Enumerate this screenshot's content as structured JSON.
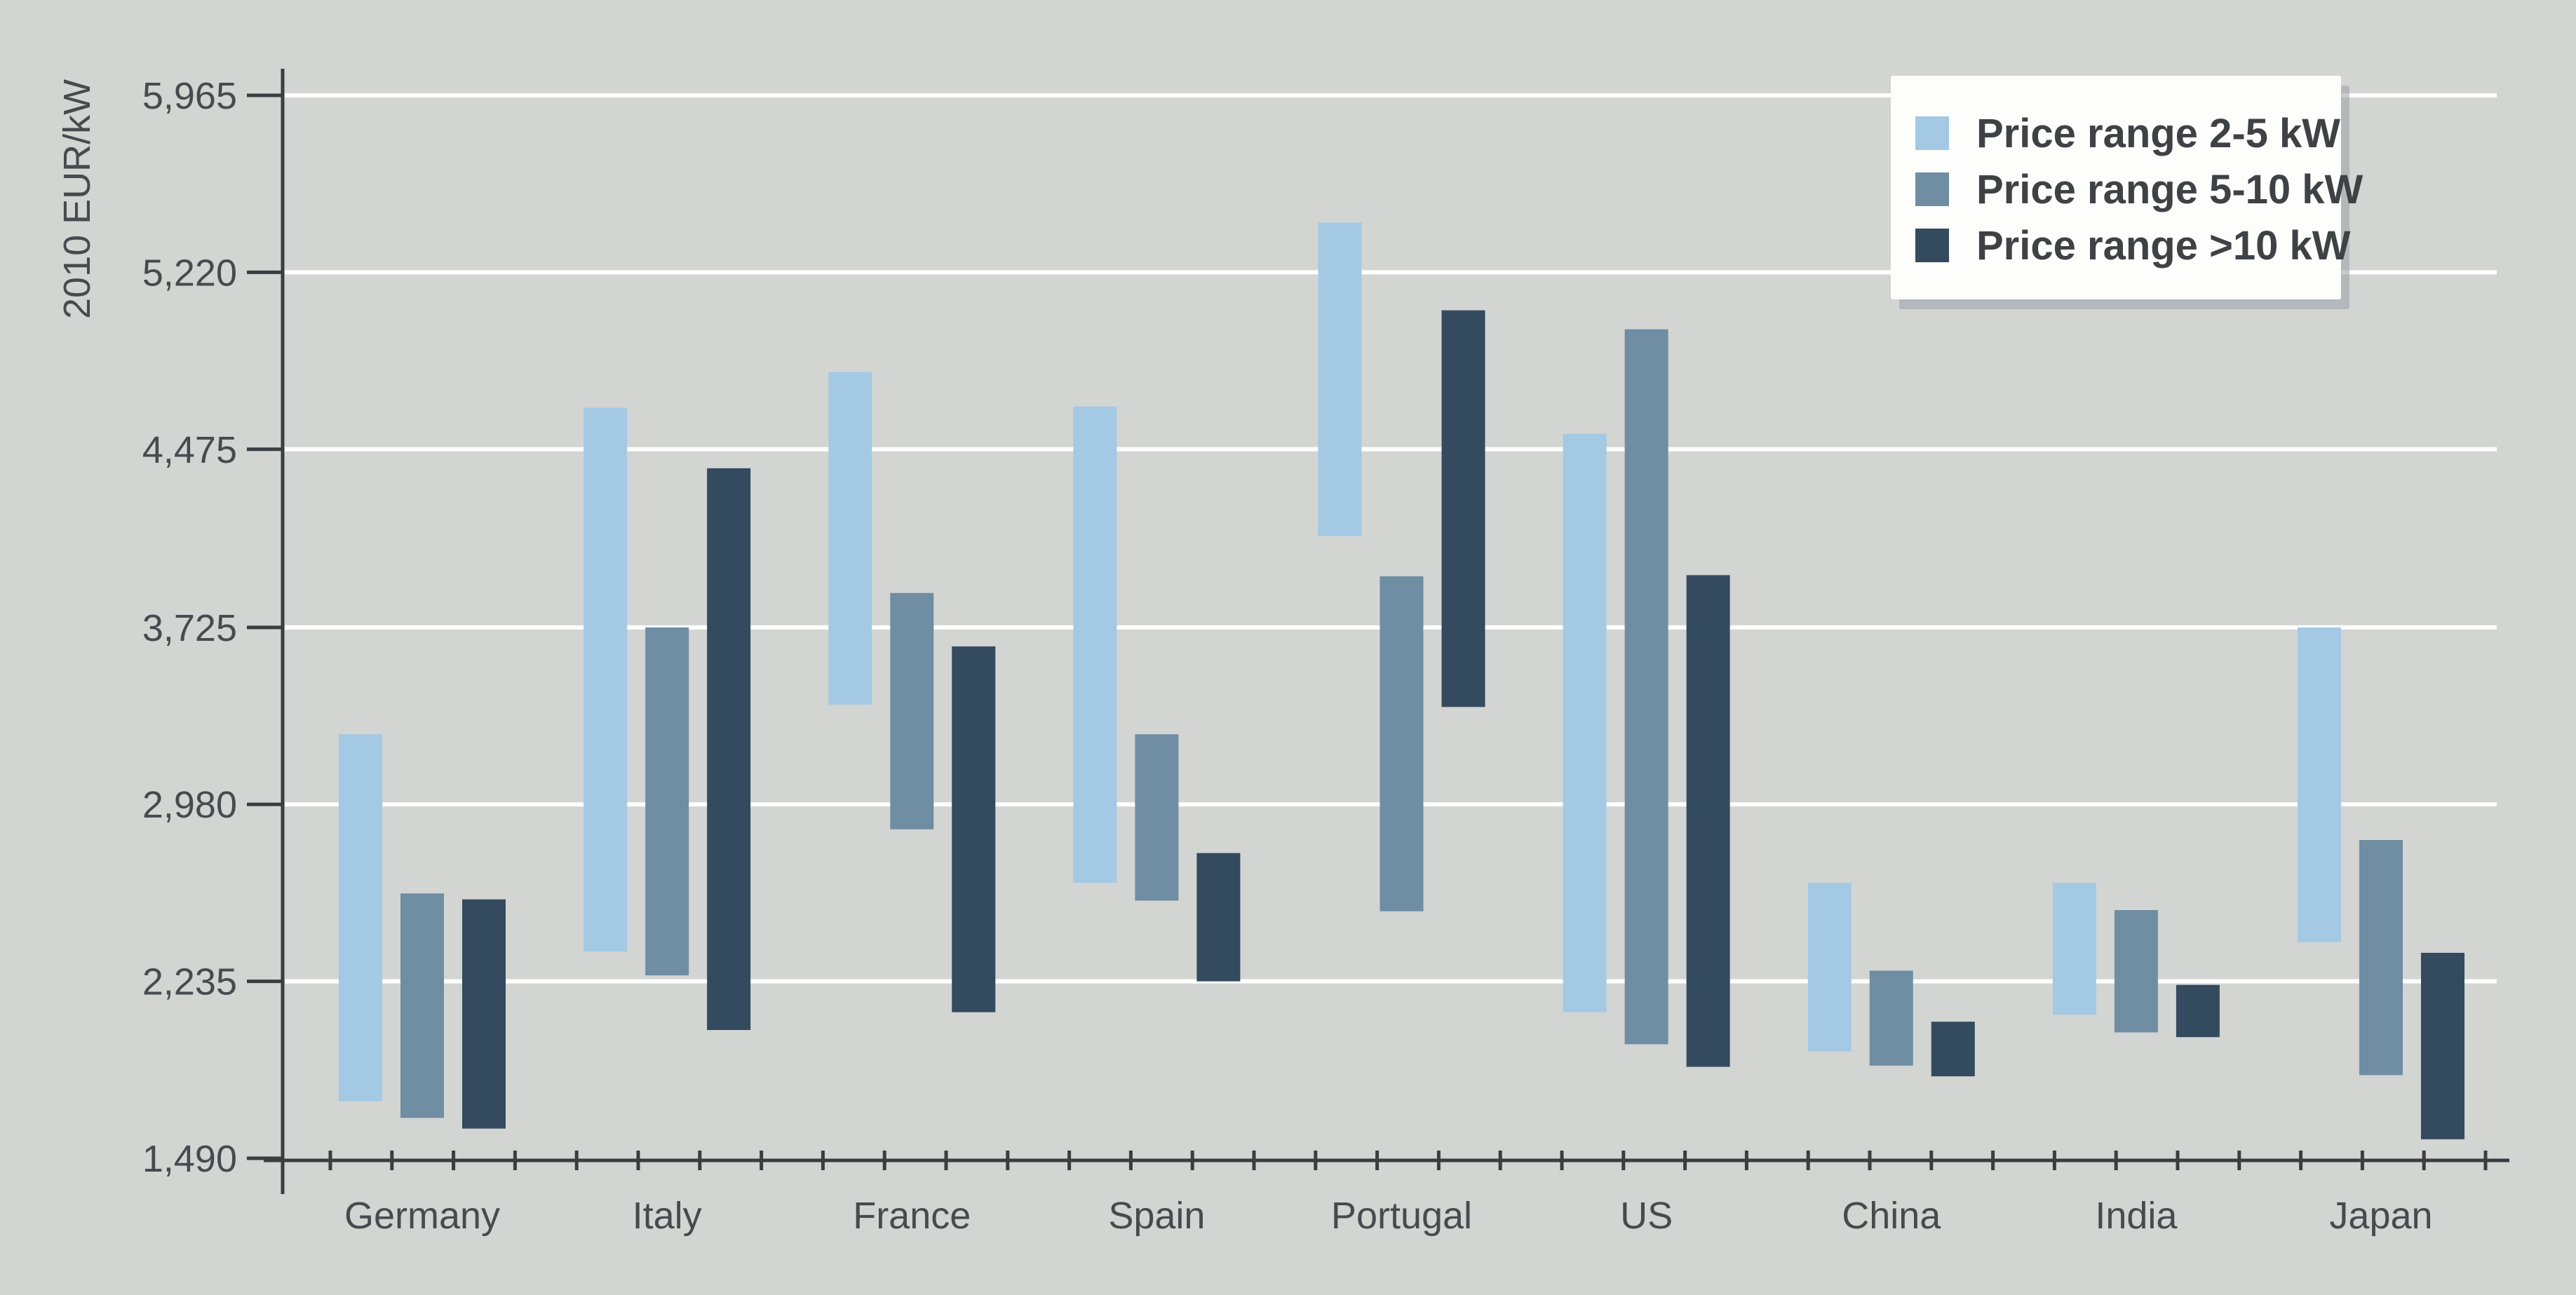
{
  "chart_data": {
    "type": "bar",
    "variant": "floating-range-columns",
    "title": "",
    "ylabel": "2010 EUR/kW",
    "xlabel": "",
    "grid": {
      "horizontal": true,
      "color": "#ffffff"
    },
    "y_axis": {
      "min": 1490,
      "max": 5965,
      "tick_values": [
        1490,
        2235,
        2980,
        3725,
        4475,
        5220,
        5965
      ],
      "tick_labels": [
        "1,490",
        "2,235",
        "2,980",
        "3,725",
        "4,475",
        "5,220",
        "5,965"
      ]
    },
    "categories": [
      "Germany",
      "Italy",
      "France",
      "Spain",
      "Portugal",
      "US",
      "China",
      "India",
      "Japan"
    ],
    "series": [
      {
        "name": "Price range 2-5 kW",
        "color": "#a3c9e4",
        "ranges": [
          [
            1730,
            3275
          ],
          [
            2360,
            4650
          ],
          [
            3400,
            4800
          ],
          [
            2650,
            4655
          ],
          [
            4110,
            5430
          ],
          [
            2105,
            4540
          ],
          [
            1940,
            2650
          ],
          [
            2095,
            2650
          ],
          [
            2400,
            3725
          ]
        ]
      },
      {
        "name": "Price range 5-10 kW",
        "color": "#6f8da3",
        "ranges": [
          [
            1660,
            2605
          ],
          [
            2260,
            3725
          ],
          [
            2875,
            3870
          ],
          [
            2575,
            3275
          ],
          [
            2530,
            3940
          ],
          [
            1970,
            4980
          ],
          [
            1880,
            2280
          ],
          [
            2020,
            2535
          ],
          [
            1840,
            2830
          ]
        ]
      },
      {
        "name": "Price range >10 kW",
        "color": "#344a5e",
        "ranges": [
          [
            1615,
            2580
          ],
          [
            2030,
            4395
          ],
          [
            2105,
            3645
          ],
          [
            2235,
            2775
          ],
          [
            3390,
            5060
          ],
          [
            1875,
            3945
          ],
          [
            1835,
            2065
          ],
          [
            2000,
            2220
          ],
          [
            1570,
            2355
          ]
        ]
      }
    ],
    "legend": {
      "position": "top-right"
    }
  },
  "palette": {
    "background": "#d3d5d3",
    "axis": "#3a3e41",
    "label_text": "#474b4e",
    "gridline": "#ffffff",
    "legend_background": "#fdfdfb",
    "legend_shadow": "#9aa0a5",
    "legend_text": "#3e4245"
  }
}
